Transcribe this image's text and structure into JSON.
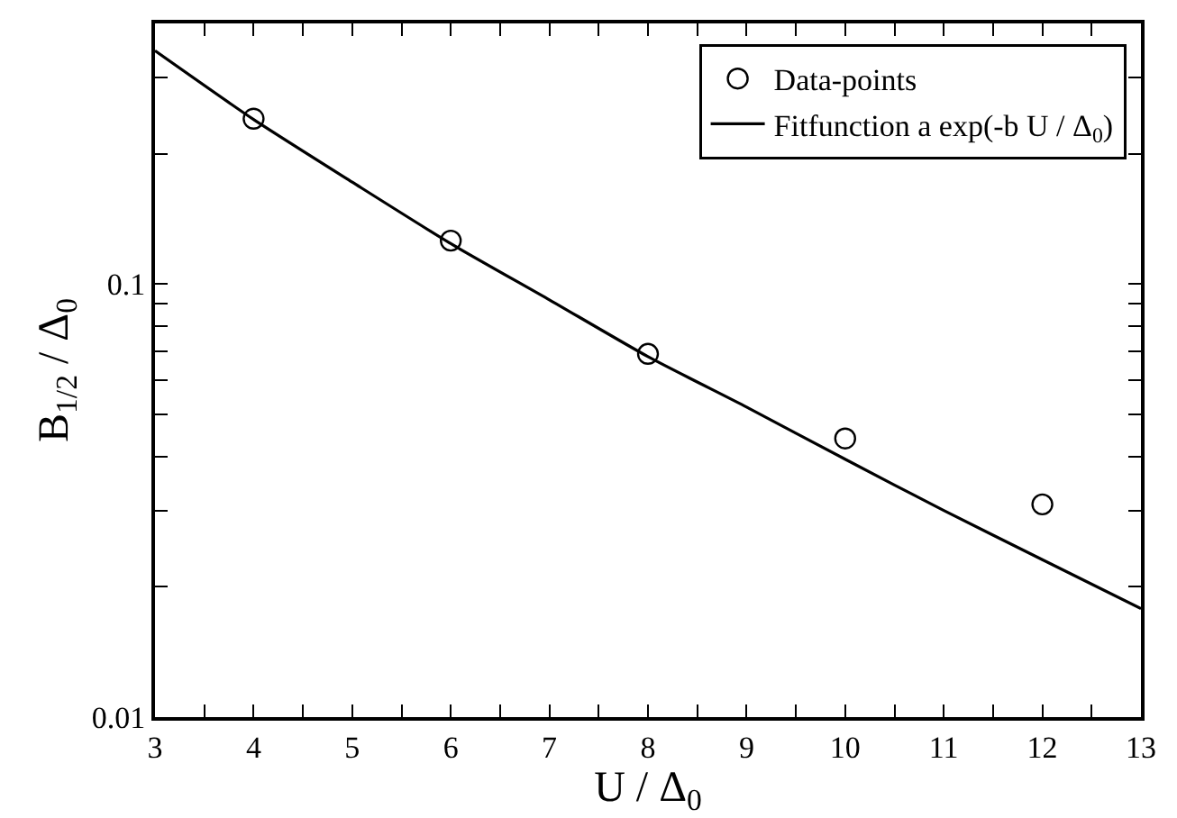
{
  "chart_data": {
    "type": "scatter",
    "xlabel": "U / Δ$_{0}$",
    "ylabel": "B$_{1/2}$ / Δ$_{0}$",
    "log": "y",
    "legend": "top right",
    "marker": "circle",
    "xlim": [
      3,
      13
    ],
    "ylim": [
      0.01,
      0.4
    ],
    "xticks": [
      3,
      {
        "value": 3.5,
        "label": null
      },
      4,
      {
        "value": 4.5,
        "label": null
      },
      5,
      {
        "value": 5.5,
        "label": null
      },
      6,
      {
        "value": 6.5,
        "label": null
      },
      7,
      {
        "value": 7.5,
        "label": null
      },
      8,
      {
        "value": 8.5,
        "label": null
      },
      9,
      {
        "value": 9.5,
        "label": null
      },
      10,
      {
        "value": 10.5,
        "label": null
      },
      11,
      {
        "value": 11.5,
        "label": null
      },
      12,
      {
        "value": 12.5,
        "label": null
      },
      13
    ],
    "yticks": [
      0.01,
      {
        "value": 0.02,
        "label": null
      },
      {
        "value": 0.03,
        "label": null
      },
      {
        "value": 0.04,
        "label": null
      },
      {
        "value": 0.05,
        "label": null
      },
      {
        "value": 0.06,
        "label": null
      },
      {
        "value": 0.07,
        "label": null
      },
      {
        "value": 0.08,
        "label": null
      },
      {
        "value": 0.09,
        "label": null
      },
      0.1,
      {
        "value": 0.2,
        "label": null
      },
      {
        "value": 0.3,
        "label": null
      }
    ],
    "series": [
      {
        "name": "Data-points",
        "color": "#000000",
        "x": [
          4,
          6,
          8,
          10,
          12
        ],
        "values": [
          0.241,
          0.126,
          0.069,
          0.044,
          0.031
        ]
      },
      {
        "name": "Fitfunction a exp(-b U / Δ$_{0}$)",
        "type": "line",
        "marker": "none",
        "line_style": "solid",
        "color": "#000000",
        "x": [
          3,
          4,
          5,
          6,
          7,
          8,
          9,
          10,
          11,
          12,
          13
        ],
        "values": [
          0.346,
          0.24,
          0.172,
          0.124,
          0.092,
          0.068,
          0.052,
          0.0394,
          0.03,
          0.0231,
          0.0178
        ]
      }
    ]
  }
}
